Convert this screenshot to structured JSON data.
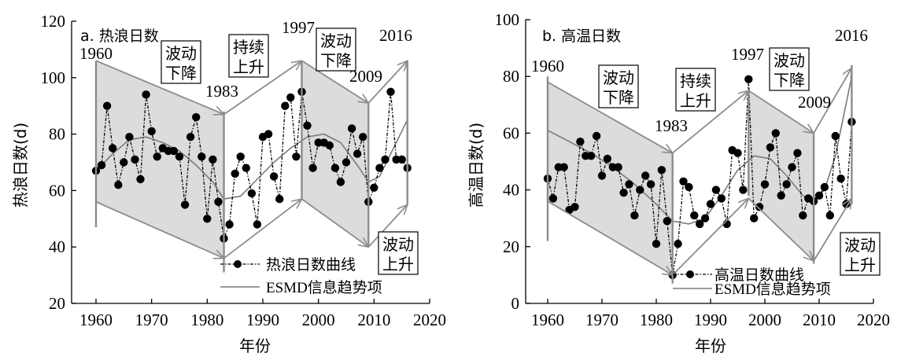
{
  "chart_data": [
    {
      "type": "line",
      "title": "a. 热浪日数",
      "xlabel": "年份",
      "ylabel": "热浪日数(d)",
      "xlim": [
        1955,
        2020
      ],
      "ylim": [
        20,
        120
      ],
      "xticks": [
        "1960",
        "1970",
        "1980",
        "1990",
        "2000",
        "2010",
        "2020"
      ],
      "yticks": [
        "20",
        "40",
        "60",
        "80",
        "100",
        "120"
      ],
      "legend": {
        "position": "bottom-center",
        "entries": [
          "热浪日数曲线",
          "ESMD信息趋势项"
        ]
      },
      "series": [
        {
          "name": "热浪日数曲线",
          "style": "dash-dot with filled circles",
          "x": [
            1960,
            1961,
            1962,
            1963,
            1964,
            1965,
            1966,
            1967,
            1968,
            1969,
            1970,
            1971,
            1972,
            1973,
            1974,
            1975,
            1976,
            1977,
            1978,
            1979,
            1980,
            1981,
            1982,
            1983,
            1984,
            1985,
            1986,
            1987,
            1988,
            1989,
            1990,
            1991,
            1992,
            1993,
            1994,
            1995,
            1996,
            1997,
            1998,
            1999,
            2000,
            2001,
            2002,
            2003,
            2004,
            2005,
            2006,
            2007,
            2008,
            2009,
            2010,
            2011,
            2012,
            2013,
            2014,
            2015,
            2016
          ],
          "y": [
            67,
            69,
            90,
            75,
            62,
            70,
            79,
            71,
            64,
            94,
            81,
            72,
            75,
            74,
            74,
            72,
            55,
            79,
            86,
            72,
            50,
            71,
            56,
            43,
            48,
            66,
            72,
            68,
            59,
            48,
            79,
            80,
            65,
            57,
            90,
            93,
            72,
            95,
            83,
            68,
            77,
            77,
            76,
            68,
            63,
            70,
            82,
            73,
            79,
            56,
            61,
            68,
            71,
            95,
            71,
            71,
            68
          ]
        },
        {
          "name": "ESMD信息趋势项",
          "style": "solid gray",
          "x": [
            1960,
            1963,
            1966,
            1969,
            1972,
            1975,
            1978,
            1981,
            1983,
            1986,
            1989,
            1992,
            1995,
            1998,
            2001,
            2004,
            2007,
            2009,
            2011,
            2013,
            2016
          ],
          "y": [
            67,
            73,
            78,
            79,
            77,
            74,
            69,
            63,
            57,
            58,
            64,
            70,
            75,
            79,
            80,
            77,
            69,
            63,
            65,
            73,
            85
          ]
        }
      ],
      "annotations": {
        "years": [
          "1960",
          "1983",
          "1997",
          "2009",
          "2016"
        ],
        "phases": [
          {
            "label_line1": "波动",
            "label_line2": "下降",
            "from": 1960,
            "to": 1983,
            "upper": [
              106,
              87
            ],
            "lower": [
              56,
              36
            ],
            "shaded": true
          },
          {
            "label_line1": "持续",
            "label_line2": "上升",
            "from": 1983,
            "to": 1997,
            "upper": [
              87,
              106
            ],
            "lower": [
              36,
              57
            ],
            "shaded": false
          },
          {
            "label_line1": "波动",
            "label_line2": "下降",
            "from": 1997,
            "to": 2009,
            "upper": [
              106,
              91
            ],
            "lower": [
              57,
              40
            ],
            "shaded": true
          },
          {
            "label_line1": "波动",
            "label_line2": "上升",
            "from": 2009,
            "to": 2016,
            "upper": [
              91,
              106
            ],
            "lower": [
              40,
              55
            ],
            "shaded": false
          }
        ]
      }
    },
    {
      "type": "line",
      "title": "b. 高温日数",
      "xlabel": "年份",
      "ylabel": "高温日数(d)",
      "xlim": [
        1955,
        2020
      ],
      "ylim": [
        0,
        100
      ],
      "xticks": [
        "1960",
        "1970",
        "1980",
        "1990",
        "2000",
        "2010",
        "2020"
      ],
      "yticks": [
        "0",
        "20",
        "40",
        "60",
        "80",
        "100"
      ],
      "legend": {
        "position": "bottom-center",
        "entries": [
          "高温日数曲线",
          "ESMD信息趋势项"
        ]
      },
      "series": [
        {
          "name": "高温日数曲线",
          "style": "dash-dot with filled circles",
          "x": [
            1960,
            1961,
            1962,
            1963,
            1964,
            1965,
            1966,
            1967,
            1968,
            1969,
            1970,
            1971,
            1972,
            1973,
            1974,
            1975,
            1976,
            1977,
            1978,
            1979,
            1980,
            1981,
            1982,
            1983,
            1984,
            1985,
            1986,
            1987,
            1988,
            1989,
            1990,
            1991,
            1992,
            1993,
            1994,
            1995,
            1996,
            1997,
            1998,
            1999,
            2000,
            2001,
            2002,
            2003,
            2004,
            2005,
            2006,
            2007,
            2008,
            2009,
            2010,
            2011,
            2012,
            2013,
            2014,
            2015,
            2016
          ],
          "y": [
            44,
            37,
            48,
            48,
            33,
            34,
            57,
            52,
            52,
            59,
            45,
            51,
            48,
            48,
            39,
            42,
            31,
            40,
            45,
            42,
            21,
            47,
            29,
            10,
            21,
            43,
            41,
            31,
            28,
            30,
            35,
            40,
            37,
            28,
            54,
            53,
            40,
            79,
            30,
            34,
            42,
            55,
            60,
            38,
            42,
            48,
            53,
            31,
            37,
            36,
            38,
            41,
            31,
            59,
            44,
            35,
            64
          ]
        },
        {
          "name": "ESMD信息趋势项",
          "style": "solid gray",
          "x": [
            1960,
            1964,
            1968,
            1972,
            1976,
            1980,
            1983,
            1986,
            1989,
            1992,
            1995,
            1998,
            2001,
            2004,
            2007,
            2009,
            2011,
            2013,
            2016
          ],
          "y": [
            61,
            57,
            53,
            48,
            42,
            35,
            29,
            28,
            30,
            38,
            47,
            52,
            51,
            45,
            38,
            36,
            40,
            52,
            80
          ]
        }
      ],
      "annotations": {
        "years": [
          "1960",
          "1983",
          "1997",
          "2009",
          "2016"
        ],
        "phases": [
          {
            "label_line1": "波动",
            "label_line2": "下降",
            "from": 1960,
            "to": 1983,
            "upper": [
              78,
              53
            ],
            "lower": [
              36,
              10
            ],
            "shaded": true
          },
          {
            "label_line1": "持续",
            "label_line2": "上升",
            "from": 1983,
            "to": 1997,
            "upper": [
              53,
              75
            ],
            "lower": [
              10,
              37
            ],
            "shaded": false
          },
          {
            "label_line1": "波动",
            "label_line2": "下降",
            "from": 1997,
            "to": 2009,
            "upper": [
              75,
              60
            ],
            "lower": [
              37,
              15
            ],
            "shaded": true
          },
          {
            "label_line1": "波动",
            "label_line2": "上升",
            "from": 2009,
            "to": 2016,
            "upper": [
              60,
              83
            ],
            "lower": [
              15,
              37
            ],
            "shaded": false
          }
        ]
      }
    }
  ],
  "colors": {
    "shade": "#dcdcdc",
    "frame": "#8c8c8c",
    "trend": "#7a7a7a",
    "points": "#000000"
  }
}
